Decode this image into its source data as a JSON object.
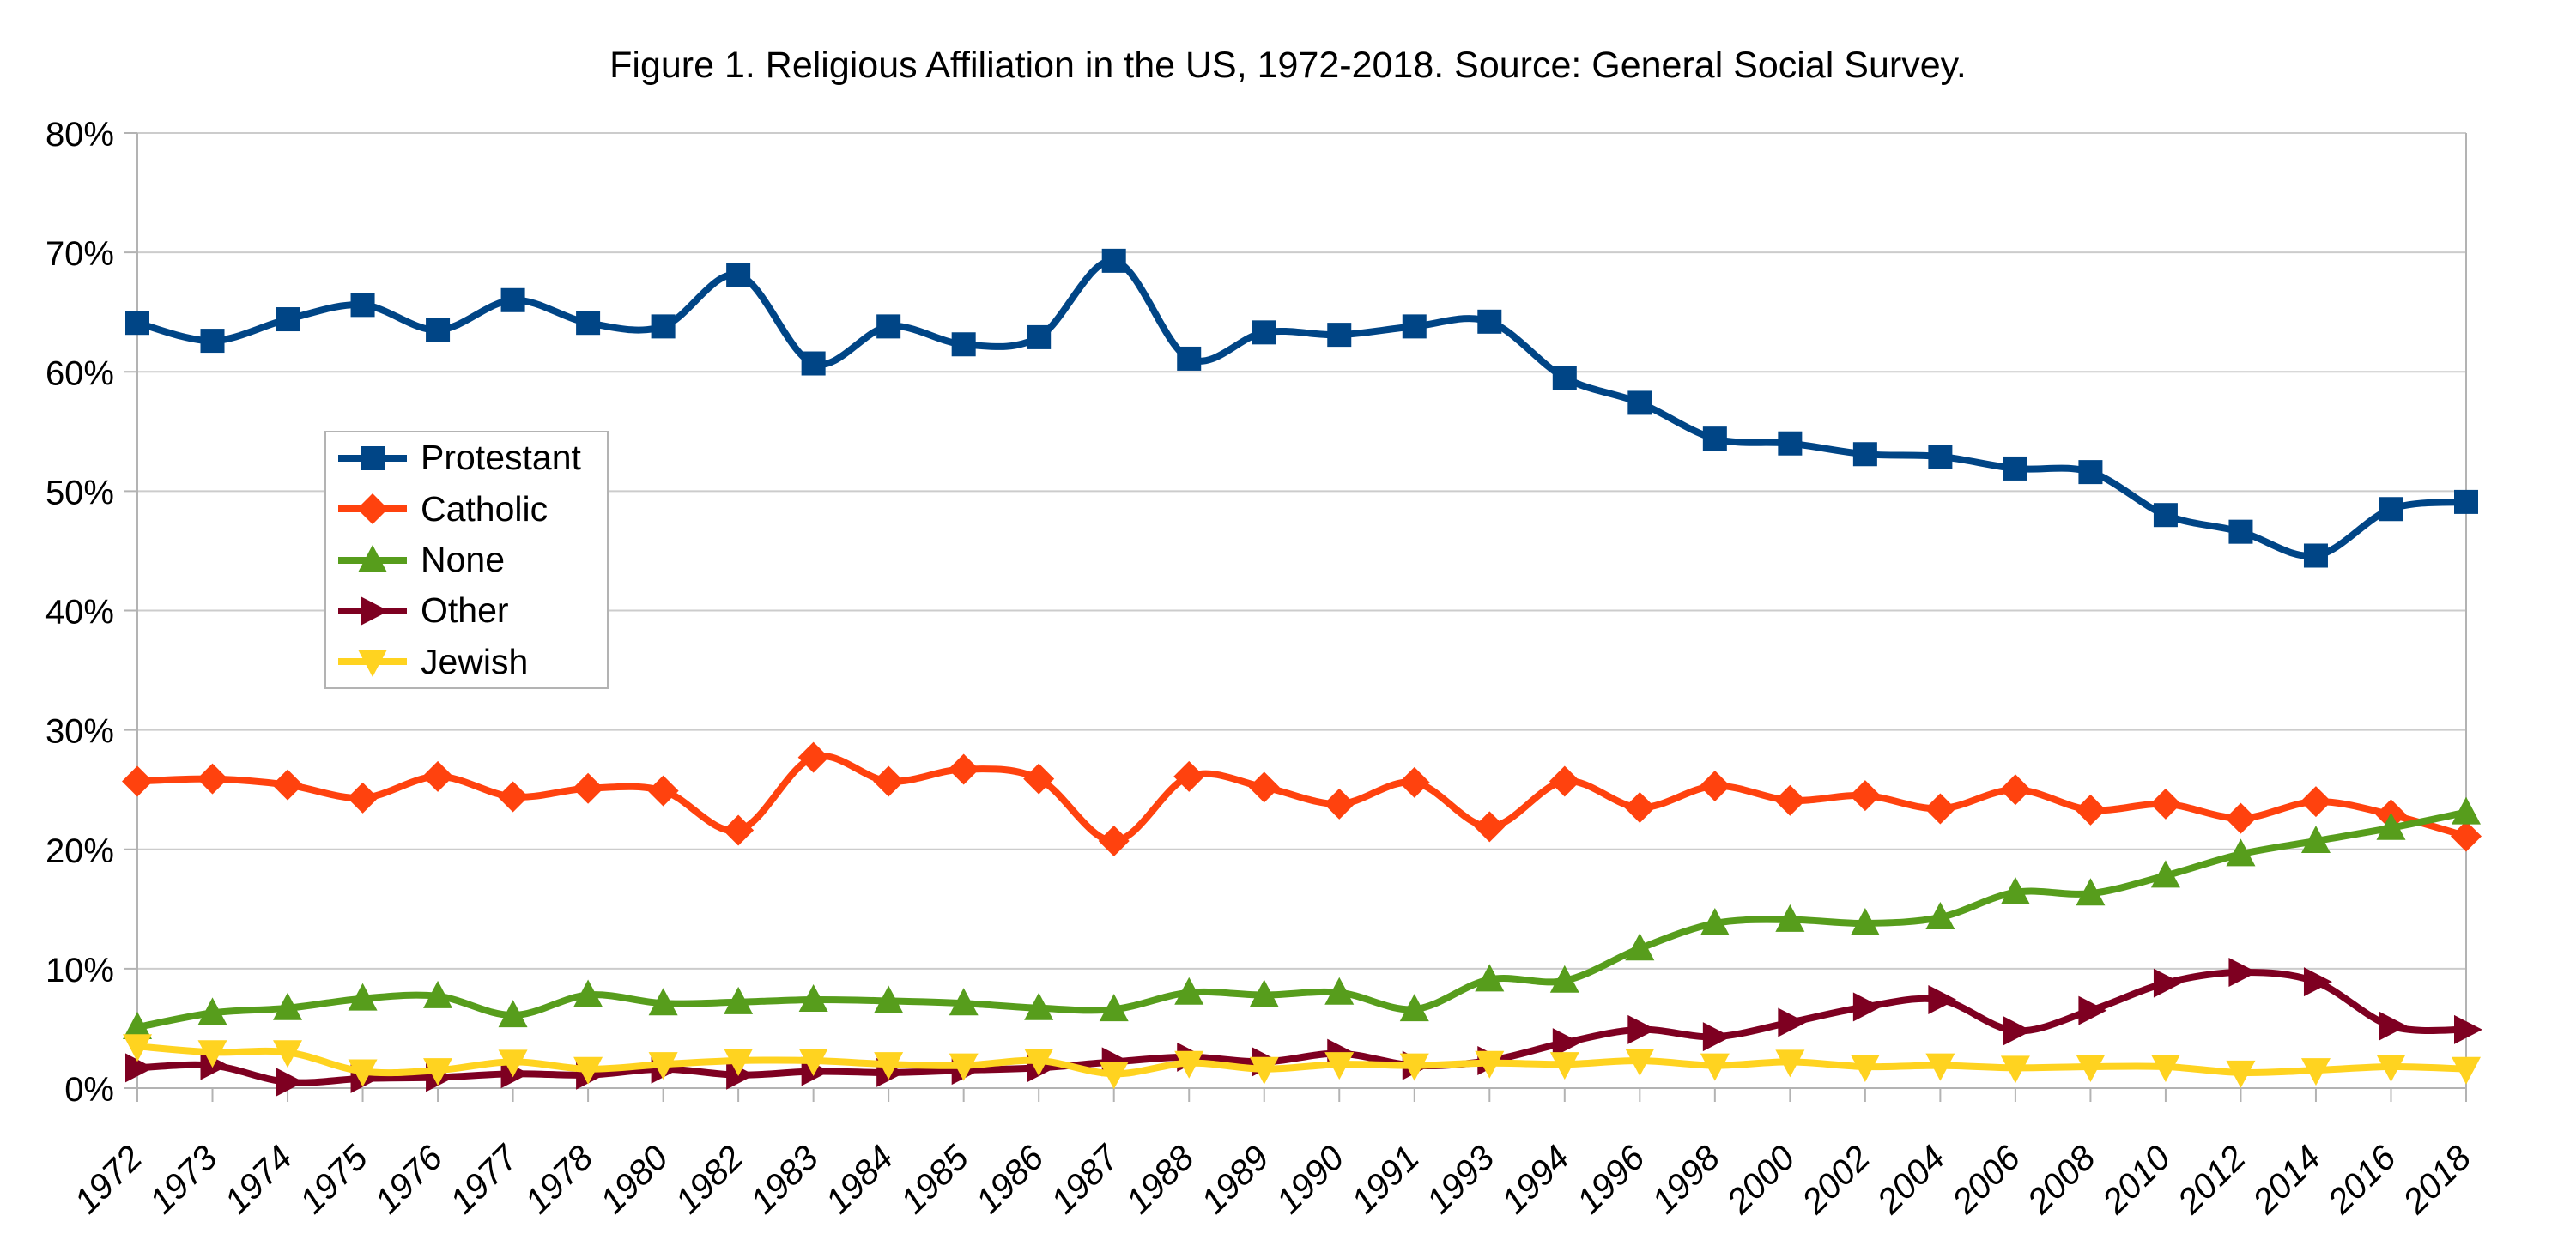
{
  "chart_data": {
    "type": "line",
    "title": "Figure 1. Religious Affiliation in the US, 1972-2018. Source: General Social Survey.",
    "xlabel": "",
    "ylabel": "",
    "ylim": [
      0,
      80
    ],
    "ytick_step": 10,
    "y_tick_labels": [
      "0%",
      "10%",
      "20%",
      "30%",
      "40%",
      "50%",
      "60%",
      "70%",
      "80%"
    ],
    "grid": "horizontal",
    "line_smooth": true,
    "legend_position": "inside-upper-left",
    "categories": [
      "1972",
      "1973",
      "1974",
      "1975",
      "1976",
      "1977",
      "1978",
      "1980",
      "1982",
      "1983",
      "1984",
      "1985",
      "1986",
      "1987",
      "1988",
      "1989",
      "1990",
      "1991",
      "1993",
      "1994",
      "1996",
      "1998",
      "2000",
      "2002",
      "2004",
      "2006",
      "2008",
      "2010",
      "2012",
      "2014",
      "2016",
      "2018"
    ],
    "series": [
      {
        "name": "Protestant",
        "color": "#004586",
        "marker": "square",
        "values": [
          64.1,
          62.6,
          64.4,
          65.6,
          63.5,
          66.0,
          64.1,
          63.8,
          68.1,
          60.7,
          63.8,
          62.3,
          62.9,
          69.3,
          61.1,
          63.3,
          63.1,
          63.8,
          64.2,
          59.5,
          57.4,
          54.4,
          54.0,
          53.1,
          52.9,
          51.9,
          51.6,
          48.0,
          46.6,
          44.6,
          48.5,
          49.1
        ]
      },
      {
        "name": "Catholic",
        "color": "#FF420E",
        "marker": "diamond",
        "values": [
          25.7,
          25.9,
          25.4,
          24.3,
          26.1,
          24.4,
          25.1,
          24.9,
          21.6,
          27.7,
          25.7,
          26.7,
          25.9,
          20.7,
          26.1,
          25.2,
          23.8,
          25.6,
          21.9,
          25.7,
          23.5,
          25.3,
          24.1,
          24.5,
          23.4,
          25.0,
          23.3,
          23.8,
          22.6,
          24.0,
          22.9,
          21.1
        ]
      },
      {
        "name": "None",
        "color": "#579D1C",
        "marker": "triangle-up",
        "values": [
          5.1,
          6.3,
          6.7,
          7.5,
          7.7,
          6.1,
          7.8,
          7.1,
          7.2,
          7.4,
          7.3,
          7.1,
          6.7,
          6.6,
          8.0,
          7.8,
          8.0,
          6.6,
          9.1,
          9.0,
          11.7,
          13.8,
          14.1,
          13.8,
          14.3,
          16.4,
          16.3,
          17.8,
          19.6,
          20.7,
          21.8,
          23.1
        ]
      },
      {
        "name": "Other",
        "color": "#7E0021",
        "marker": "triangle-right",
        "values": [
          1.7,
          1.9,
          0.5,
          0.8,
          0.9,
          1.2,
          1.1,
          1.6,
          1.1,
          1.4,
          1.3,
          1.5,
          1.7,
          2.2,
          2.6,
          2.2,
          2.9,
          1.9,
          2.3,
          3.8,
          4.9,
          4.3,
          5.5,
          6.8,
          7.4,
          4.8,
          6.5,
          8.8,
          9.7,
          8.9,
          5.2,
          4.9
        ]
      },
      {
        "name": "Jewish",
        "color": "#FFD320",
        "marker": "triangle-down",
        "values": [
          3.5,
          3.0,
          3.0,
          1.4,
          1.5,
          2.2,
          1.6,
          2.0,
          2.3,
          2.3,
          2.0,
          1.9,
          2.3,
          1.2,
          2.1,
          1.6,
          2.0,
          1.9,
          2.1,
          2.0,
          2.3,
          1.9,
          2.2,
          1.8,
          1.9,
          1.7,
          1.8,
          1.8,
          1.3,
          1.5,
          1.8,
          1.6
        ]
      }
    ]
  },
  "colors": {
    "background": "#ffffff",
    "gridline": "#cccccc",
    "axis": "#b3b3b3",
    "text": "#000000"
  }
}
